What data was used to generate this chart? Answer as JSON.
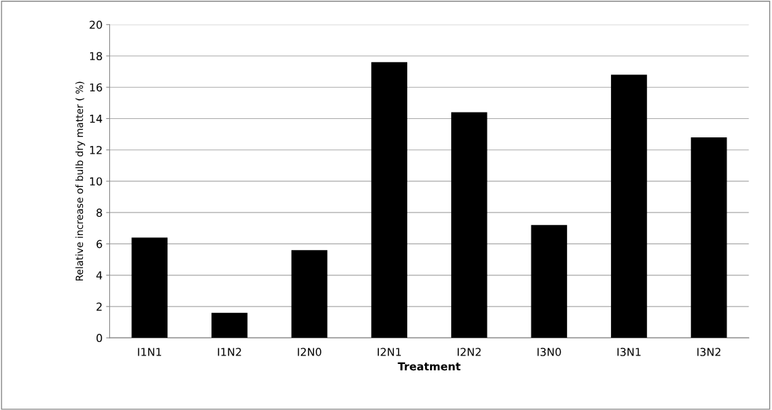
{
  "chart_data": {
    "type": "bar",
    "xlabel": "Treatment",
    "ylabel": "Relative increase of bulb dry matter ( %)",
    "categories": [
      "I1N1",
      "I1N2",
      "I2N0",
      "I2N1",
      "I2N2",
      "I3N0",
      "I3N1",
      "I3N2"
    ],
    "values": [
      6.4,
      1.6,
      5.6,
      17.6,
      14.4,
      7.2,
      16.8,
      12.8
    ],
    "color": "#000000",
    "ylim": [
      0,
      20
    ],
    "yticks": [
      0,
      2,
      4,
      6,
      8,
      10,
      12,
      14,
      16,
      18,
      20
    ],
    "grid": "y"
  }
}
